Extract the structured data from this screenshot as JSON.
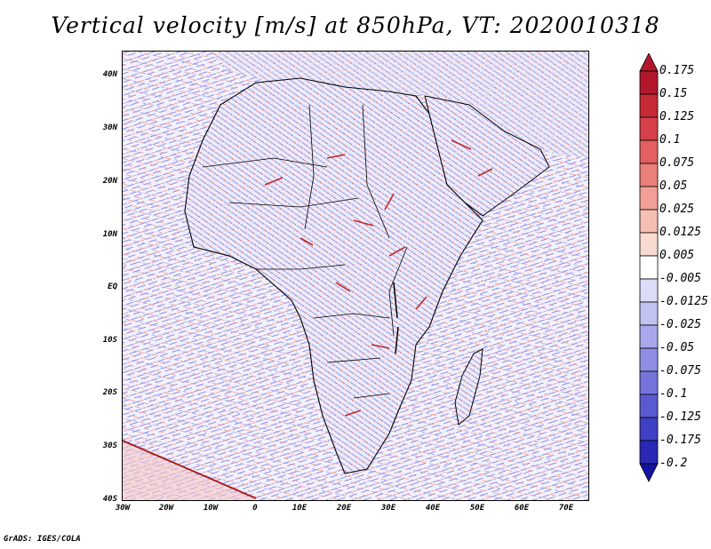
{
  "title": "Vertical velocity [m/s] at 850hPa, VT: 2020010318",
  "footer": "GrADS: IGES/COLA",
  "lat_ticks": [
    "40N",
    "30N",
    "20N",
    "10N",
    "EQ",
    "10S",
    "20S",
    "30S",
    "40S"
  ],
  "lon_ticks": [
    "30W",
    "20W",
    "10W",
    "0",
    "10E",
    "20E",
    "30E",
    "40E",
    "50E",
    "60E",
    "70E"
  ],
  "colorbar": {
    "labels": [
      "0.175",
      "0.15",
      "0.125",
      "0.1",
      "0.075",
      "0.05",
      "0.025",
      "0.0125",
      "0.005",
      "-0.005",
      "-0.0125",
      "-0.025",
      "-0.05",
      "-0.075",
      "-0.1",
      "-0.125",
      "-0.175",
      "-0.2"
    ],
    "colors": [
      "#b2182b",
      "#c62a36",
      "#d6404a",
      "#e2605f",
      "#ea807a",
      "#f0a097",
      "#f5bfb4",
      "#f9dad2",
      "#ffffff",
      "#dcdcf6",
      "#c2c2f0",
      "#a8a8ea",
      "#8e8ee2",
      "#7474da",
      "#5a5ad0",
      "#4040c4",
      "#2828b4",
      "#1414a0"
    ]
  },
  "colors": {
    "positive": "#d84545",
    "negative": "#6e6ee0",
    "background": "#ffffff"
  }
}
